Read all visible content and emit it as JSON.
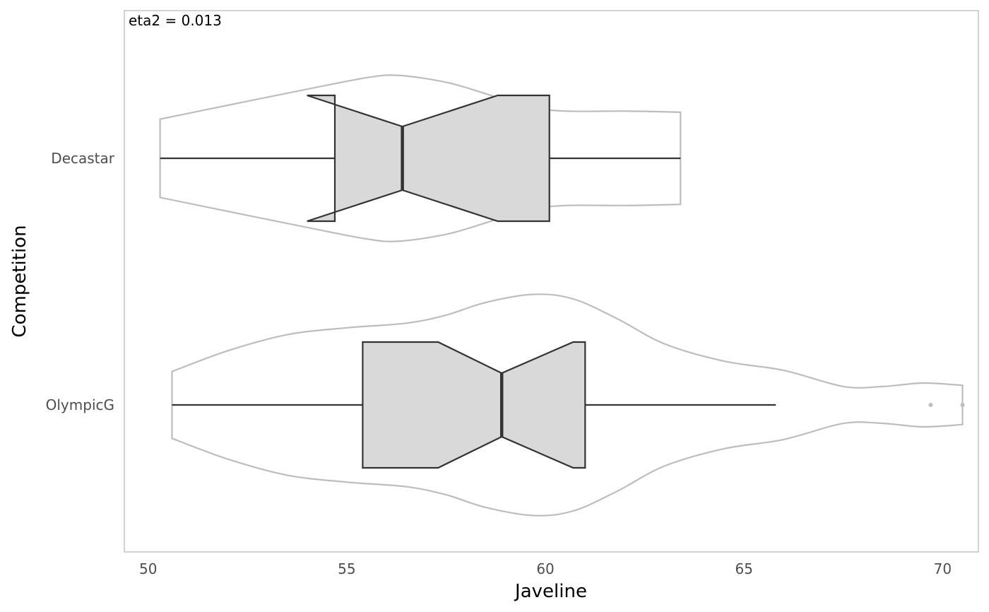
{
  "chart_data": {
    "type": "boxplot",
    "overlay": "violin",
    "notched": true,
    "orientation": "horizontal",
    "annotation": "eta2 = 0.013",
    "xlabel": "Javeline",
    "ylabel": "Competition",
    "xlim": [
      49.4,
      70.9
    ],
    "xticks": [
      50,
      55,
      60,
      65,
      70
    ],
    "grid": false,
    "categories": [
      "Decastar",
      "OlympicG"
    ],
    "series": [
      {
        "category": "Decastar",
        "min": 50.3,
        "q1": 54.7,
        "median": 56.4,
        "q3": 60.1,
        "max": 63.4,
        "notch_low": 54.0,
        "notch_high": 58.8,
        "outliers": [],
        "violin_profile": [
          [
            50.3,
            0.34
          ],
          [
            52.0,
            0.46
          ],
          [
            54.0,
            0.6
          ],
          [
            55.5,
            0.7
          ],
          [
            56.3,
            0.72
          ],
          [
            57.5,
            0.66
          ],
          [
            58.5,
            0.56
          ],
          [
            59.5,
            0.45
          ],
          [
            60.5,
            0.41
          ],
          [
            62.0,
            0.41
          ],
          [
            63.4,
            0.4
          ]
        ]
      },
      {
        "category": "OlympicG",
        "min": 50.6,
        "q1": 55.4,
        "median": 58.9,
        "q3": 61.0,
        "max": 65.8,
        "notch_low": 57.3,
        "notch_high": 60.7,
        "outliers": [
          69.7,
          70.5
        ],
        "violin_profile": [
          [
            50.6,
            0.29
          ],
          [
            52.0,
            0.47
          ],
          [
            53.5,
            0.61
          ],
          [
            55.0,
            0.67
          ],
          [
            56.5,
            0.71
          ],
          [
            57.5,
            0.78
          ],
          [
            58.5,
            0.89
          ],
          [
            59.7,
            0.96
          ],
          [
            60.7,
            0.92
          ],
          [
            61.8,
            0.75
          ],
          [
            63.0,
            0.53
          ],
          [
            64.5,
            0.38
          ],
          [
            66.0,
            0.3
          ],
          [
            67.5,
            0.16
          ],
          [
            68.5,
            0.16
          ],
          [
            69.5,
            0.19
          ],
          [
            70.5,
            0.17
          ]
        ]
      }
    ]
  }
}
